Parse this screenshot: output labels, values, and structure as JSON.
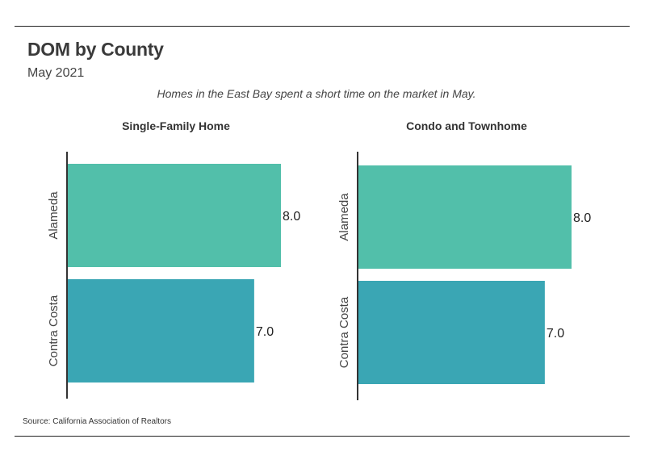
{
  "header": {
    "title": "DOM by County",
    "subtitle": "May 2021",
    "note": "Homes in the East Bay spent a short time on the market in May."
  },
  "footer": {
    "source": "Source:  California Association of Realtors"
  },
  "colors": {
    "Alameda": "#52bfaa",
    "Contra Costa": "#3aa6b4",
    "axis": "#333333"
  },
  "chart_data": [
    {
      "type": "bar",
      "orientation": "horizontal",
      "title": "Single-Family Home",
      "categories": [
        "Alameda",
        "Contra Costa"
      ],
      "values": [
        8.0,
        7.0
      ],
      "value_labels": [
        "8.0",
        "7.0"
      ],
      "xlim": [
        0,
        8.0
      ],
      "grid": false,
      "legend": "none"
    },
    {
      "type": "bar",
      "orientation": "horizontal",
      "title": "Condo and Townhome",
      "categories": [
        "Alameda",
        "Contra Costa"
      ],
      "values": [
        8.0,
        7.0
      ],
      "value_labels": [
        "8.0",
        "7.0"
      ],
      "xlim": [
        0,
        8.0
      ],
      "grid": false,
      "legend": "none"
    }
  ]
}
